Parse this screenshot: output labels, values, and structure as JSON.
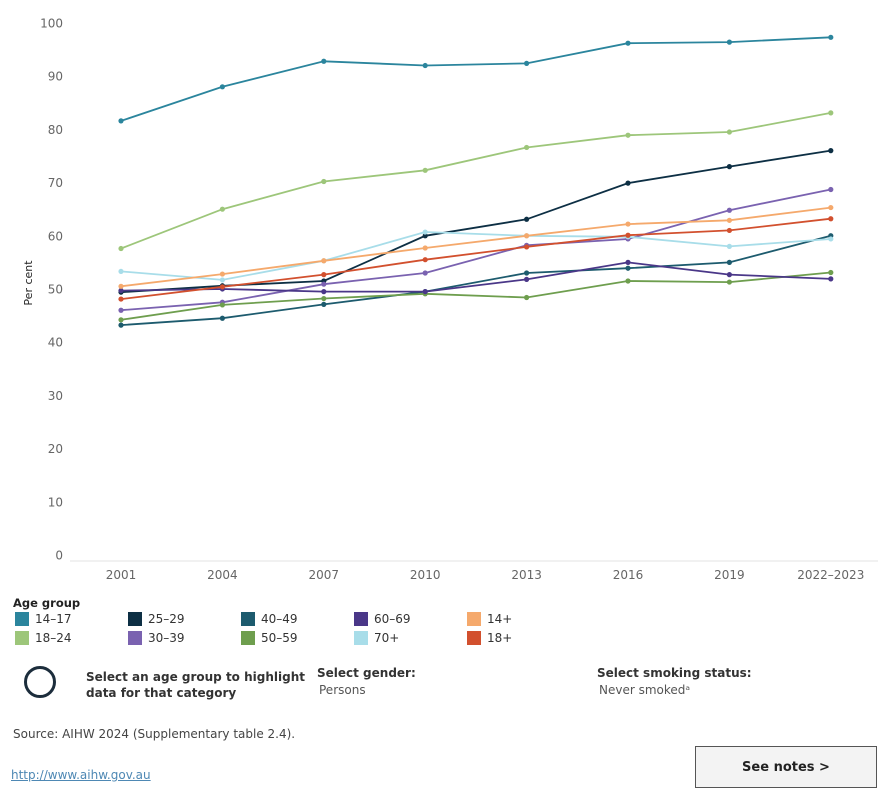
{
  "chart_data": {
    "type": "line",
    "title": "",
    "xlabel": "",
    "ylabel": "Per cent",
    "ylim": [
      0,
      100
    ],
    "yticks": [
      0,
      10,
      20,
      30,
      40,
      50,
      60,
      70,
      80,
      90,
      100
    ],
    "categories": [
      "2001",
      "2004",
      "2007",
      "2010",
      "2013",
      "2016",
      "2019",
      "2022–2023"
    ],
    "grid": false,
    "series": [
      {
        "name": "14–17",
        "color": "#2b859d",
        "values": [
          81.7,
          88.1,
          92.9,
          92.1,
          92.5,
          96.3,
          96.5,
          97.4
        ]
      },
      {
        "name": "18–24",
        "color": "#9dc67a",
        "values": [
          57.7,
          65.1,
          70.3,
          72.4,
          76.7,
          79.0,
          79.6,
          83.2
        ]
      },
      {
        "name": "25–29",
        "color": "#0d2f44",
        "values": [
          49.5,
          50.7,
          51.6,
          60.1,
          63.2,
          70.0,
          73.1,
          76.1
        ]
      },
      {
        "name": "30–39",
        "color": "#7a62b0",
        "values": [
          46.1,
          47.6,
          51.0,
          53.1,
          58.3,
          59.5,
          64.9,
          68.8
        ]
      },
      {
        "name": "40–49",
        "color": "#1d5b6e",
        "values": [
          43.3,
          44.6,
          47.2,
          49.6,
          53.1,
          54.0,
          55.1,
          60.1
        ]
      },
      {
        "name": "50–59",
        "color": "#6e9e4e",
        "values": [
          44.3,
          47.1,
          48.3,
          49.2,
          48.5,
          51.6,
          51.4,
          53.2
        ]
      },
      {
        "name": "60–69",
        "color": "#4a3788",
        "values": [
          49.8,
          50.1,
          49.6,
          49.6,
          51.9,
          55.1,
          52.8,
          52.0
        ]
      },
      {
        "name": "70+",
        "color": "#a8dde9",
        "values": [
          53.4,
          51.8,
          55.4,
          60.8,
          60.1,
          59.9,
          58.1,
          59.5
        ]
      },
      {
        "name": "14+",
        "color": "#f5a96c",
        "values": [
          50.6,
          52.9,
          55.4,
          57.8,
          60.1,
          62.3,
          63.0,
          65.4
        ]
      },
      {
        "name": "18+",
        "color": "#d2502e",
        "values": [
          48.2,
          50.5,
          52.8,
          55.6,
          58.0,
          60.2,
          61.1,
          63.3
        ]
      }
    ]
  },
  "legend": {
    "title": "Age group",
    "items": [
      {
        "label": "14–17",
        "color": "#2b859d"
      },
      {
        "label": "18–24",
        "color": "#9dc67a"
      },
      {
        "label": "25–29",
        "color": "#0d2f44"
      },
      {
        "label": "30–39",
        "color": "#7a62b0"
      },
      {
        "label": "40–49",
        "color": "#1d5b6e"
      },
      {
        "label": "50–59",
        "color": "#6e9e4e"
      },
      {
        "label": "60–69",
        "color": "#4a3788"
      },
      {
        "label": "70+",
        "color": "#a8dde9"
      },
      {
        "label": "14+",
        "color": "#f5a96c"
      },
      {
        "label": "18+",
        "color": "#d2502e"
      }
    ]
  },
  "highlight": {
    "icon": "circle-icon",
    "text": "Select an age group to highlight data for that category"
  },
  "filters": {
    "gender_label": "Select gender:",
    "gender_value": "Persons",
    "smoking_label": "Select smoking status:",
    "smoking_value": "Never smokedᵃ"
  },
  "footer": {
    "source": "Source: AIHW 2024 (Supplementary table 2.4).",
    "link": "http://www.aihw.gov.au",
    "notes_button": "See notes >"
  }
}
